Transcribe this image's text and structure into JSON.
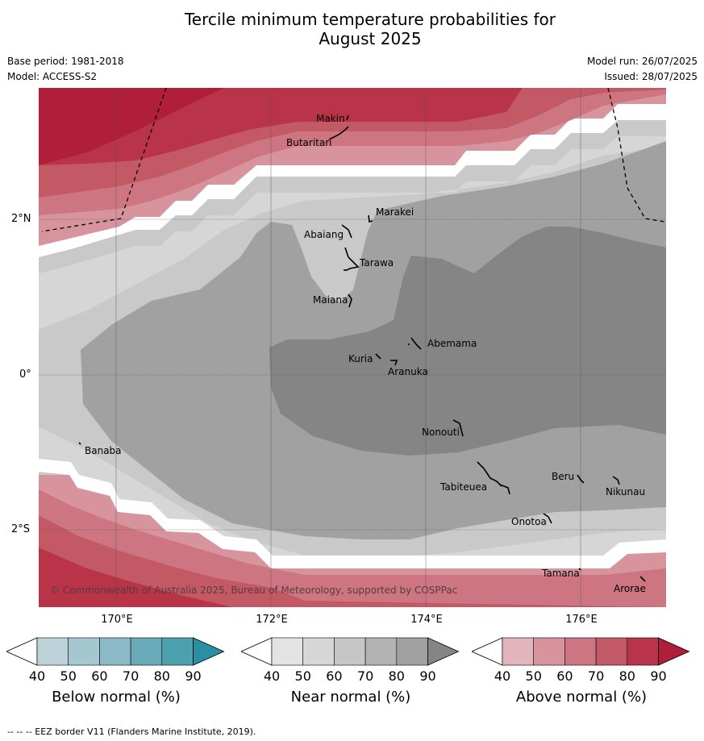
{
  "title_line1": "Tercile minimum temperature probabilities for",
  "title_line2": "August 2025",
  "base_period": "Base period: 1981-2018",
  "model": "Model: ACCESS-S2",
  "model_run": "Model run: 26/07/2025",
  "issued": "Issued: 28/07/2025",
  "axes": {
    "lat_labels": [
      "2°N",
      "0°",
      "2°S"
    ],
    "lon_labels": [
      "170°E",
      "172°E",
      "174°E",
      "176°E"
    ]
  },
  "places": [
    "Makin",
    "Butaritari",
    "Marakei",
    "Abaiang",
    "Tarawa",
    "Maiana",
    "Abemama",
    "Kuria",
    "Aranuka",
    "Nonouti",
    "Banaba",
    "Beru",
    "Nikunau",
    "Tabiteuea",
    "Onotoa",
    "Tamana",
    "Arorae"
  ],
  "copyright": "© Commonwealth of Australia 2025, Bureau of Meteorology, supported by COSPPac",
  "colorbars": [
    {
      "label": "Below normal (%)",
      "ticks": [
        "40",
        "50",
        "60",
        "70",
        "80",
        "90"
      ],
      "colors": [
        "#ffffff",
        "#bcd3da",
        "#a5c7cf",
        "#8bb9c5",
        "#6aaab8",
        "#4ca1af",
        "#2a8fa3"
      ]
    },
    {
      "label": "Near normal (%)",
      "ticks": [
        "40",
        "50",
        "60",
        "70",
        "80",
        "90"
      ],
      "colors": [
        "#ffffff",
        "#e3e3e3",
        "#d6d6d6",
        "#c6c6c6",
        "#b3b3b3",
        "#a1a1a1",
        "#858585"
      ]
    },
    {
      "label": "Above normal (%)",
      "ticks": [
        "40",
        "50",
        "60",
        "70",
        "80",
        "90"
      ],
      "colors": [
        "#ffffff",
        "#e2b5bc",
        "#d7949d",
        "#cd7681",
        "#c45966",
        "#b93449",
        "#b01e3a"
      ]
    }
  ],
  "footnote": "--  --  -- EEZ border V11 (Flanders Marine Institute, 2019)."
}
